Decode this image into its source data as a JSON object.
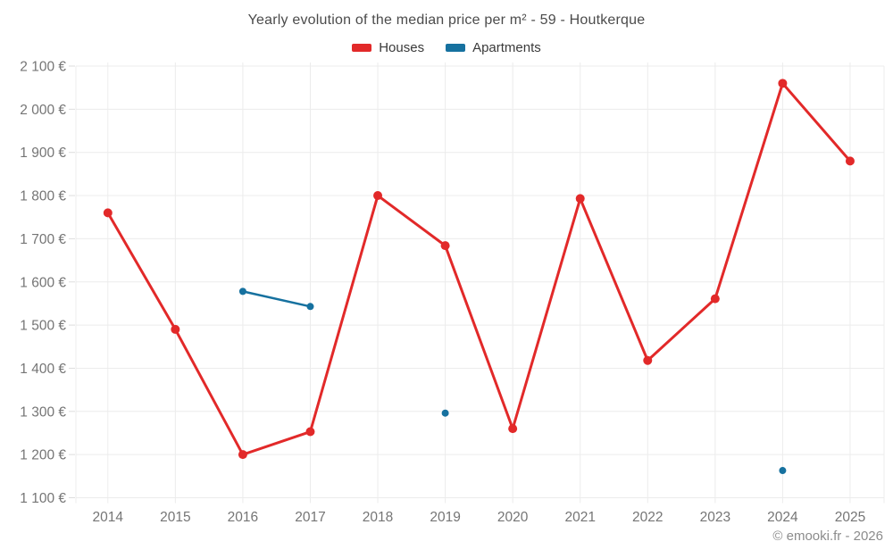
{
  "title": "Yearly evolution of the median price per m² - 59 - Houtkerque",
  "footer": "© emooki.fr - 2026",
  "chart_data": {
    "type": "line",
    "title": "Yearly evolution of the median price per m² - 59 - Houtkerque",
    "categories": [
      "2014",
      "2015",
      "2016",
      "2017",
      "2018",
      "2019",
      "2020",
      "2021",
      "2022",
      "2023",
      "2024",
      "2025"
    ],
    "series": [
      {
        "name": "Houses",
        "color": "#e22929",
        "values": [
          1760,
          1490,
          1200,
          1253,
          1800,
          1684,
          1260,
          1793,
          1418,
          1561,
          2060,
          1880
        ]
      },
      {
        "name": "Apartments",
        "color": "#16719f",
        "values": [
          null,
          null,
          1578,
          1543,
          null,
          1296,
          null,
          null,
          null,
          null,
          1163,
          null
        ]
      }
    ],
    "ylim": [
      1100,
      2100
    ],
    "ytick_step": 100,
    "ytick_labels": [
      "1 100 €",
      "1 200 €",
      "1 300 €",
      "1 400 €",
      "1 500 €",
      "1 600 €",
      "1 700 €",
      "1 800 €",
      "1 900 €",
      "2 000 €",
      "2 100 €"
    ],
    "currency": "€",
    "grid": true,
    "legend_position": "top",
    "colors": {
      "grid": "#ececec",
      "tick": "#dddddd",
      "axis_text": "#757575",
      "title_text": "#4b4b4b",
      "footer_text": "#8c8c8c"
    }
  }
}
